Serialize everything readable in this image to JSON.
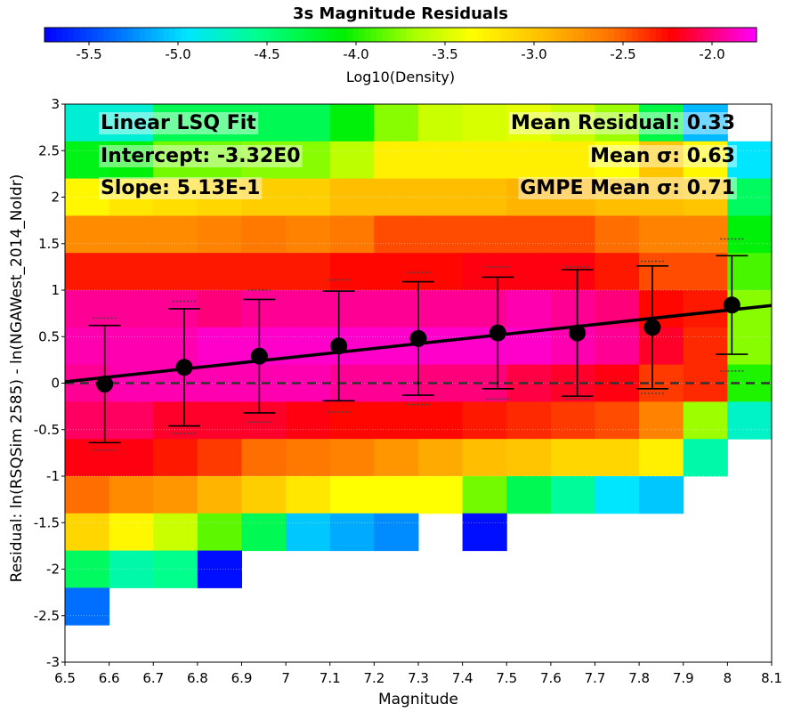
{
  "chart_data": {
    "type": "heatmap",
    "title": "3s Magnitude Residuals",
    "xlabel": "Magnitude",
    "ylabel": "Residual: ln(RSQSim 2585) - ln(NGAWest_2014_NoIdr)",
    "xlim": [
      6.5,
      8.1
    ],
    "ylim": [
      -3,
      3
    ],
    "x_ticks": [
      "6.5",
      "6.6",
      "6.7",
      "6.8",
      "6.9",
      "7",
      "7.1",
      "7.2",
      "7.3",
      "7.4",
      "7.5",
      "7.6",
      "7.7",
      "7.8",
      "7.9",
      "8",
      "8.1"
    ],
    "y_ticks": [
      "-3",
      "-2.5",
      "-2",
      "-1.5",
      "-1",
      "-0.5",
      "0",
      "0.5",
      "1",
      "1.5",
      "2",
      "2.5",
      "3"
    ],
    "colorbar": {
      "label": "Log10(Density)",
      "range": [
        -5.75,
        -1.75
      ],
      "tick_labels": [
        "-5.5",
        "-5.0",
        "-4.5",
        "-4.0",
        "-3.5",
        "-3.0",
        "-2.5",
        "-2.0"
      ],
      "tick_values": [
        -5.5,
        -5.0,
        -4.5,
        -4.0,
        -3.5,
        -3.0,
        -2.5,
        -2.0
      ]
    },
    "grid": {
      "x_step": 0.1,
      "y_step": 0.4,
      "x_start": 6.5,
      "y_start": 3.0,
      "cols": 16,
      "rows": 15
    },
    "heatmap_rows_top_to_bottom": [
      [
        -4.8,
        -4.8,
        -4.35,
        -4.35,
        -4.35,
        -4.35,
        -4.1,
        -3.75,
        -3.55,
        -3.5,
        -3.45,
        -3.55,
        -3.7,
        -4.3,
        -5.1,
        null
      ],
      [
        -4.15,
        -4.1,
        -3.8,
        -3.8,
        -3.75,
        -3.75,
        -3.6,
        -3.25,
        -3.25,
        -3.25,
        -3.25,
        -3.25,
        -3.35,
        -3.0,
        -3.3,
        -4.95
      ],
      [
        -3.3,
        -3.2,
        -3.15,
        -3.1,
        -3.05,
        -3.05,
        -2.95,
        -2.95,
        -2.95,
        -2.95,
        -2.9,
        -2.9,
        -2.95,
        -2.95,
        -3.0,
        -4.4
      ],
      [
        -2.7,
        -2.7,
        -2.7,
        -2.65,
        -2.6,
        -2.65,
        -2.6,
        -2.45,
        -2.45,
        -2.45,
        -2.45,
        -2.45,
        -2.55,
        -2.65,
        -2.65,
        -4.1
      ],
      [
        -2.3,
        -2.3,
        -2.3,
        -2.3,
        -2.3,
        -2.3,
        -2.25,
        -2.25,
        -2.25,
        -2.2,
        -2.2,
        -2.2,
        -2.3,
        -2.45,
        -2.45,
        -3.9
      ],
      [
        -1.95,
        -1.95,
        -1.95,
        -2.0,
        -1.95,
        -1.95,
        -1.95,
        -1.95,
        -1.95,
        -1.95,
        -1.9,
        -1.95,
        -2.0,
        -2.25,
        -2.3,
        -3.75
      ],
      [
        -1.9,
        -1.9,
        -1.9,
        -1.85,
        -1.85,
        -1.85,
        -1.85,
        -1.85,
        -1.85,
        -1.85,
        -1.85,
        -1.9,
        -1.95,
        -2.15,
        -2.35,
        -3.75
      ],
      [
        -1.95,
        -1.9,
        -1.9,
        -1.9,
        -1.9,
        -1.9,
        -1.95,
        -1.95,
        -2.0,
        -2.0,
        -2.1,
        -2.15,
        -2.2,
        -2.4,
        -2.35,
        -4.0
      ],
      [
        -2.05,
        -2.05,
        -2.15,
        -2.15,
        -2.15,
        -2.2,
        -2.25,
        -2.25,
        -2.25,
        -2.3,
        -2.35,
        -2.4,
        -2.45,
        -2.65,
        -3.7,
        -4.75
      ],
      [
        -2.2,
        -2.2,
        -2.3,
        -2.4,
        -2.55,
        -2.6,
        -2.65,
        -2.75,
        -2.85,
        -2.95,
        -3.0,
        -3.1,
        -3.1,
        -3.25,
        -4.65,
        null
      ],
      [
        -2.55,
        -2.7,
        -2.75,
        -2.9,
        -3.05,
        -3.2,
        -3.35,
        -3.35,
        -3.35,
        -3.8,
        -4.35,
        -4.6,
        -4.95,
        -5.05,
        null,
        null
      ],
      [
        -3.1,
        -3.3,
        -3.55,
        -3.85,
        -4.35,
        -5.05,
        -5.15,
        -5.25,
        null,
        -5.7,
        null,
        null,
        null,
        null,
        null,
        null
      ],
      [
        -4.4,
        -4.65,
        -4.55,
        -5.7,
        null,
        null,
        null,
        null,
        null,
        null,
        null,
        null,
        null,
        null,
        null,
        null
      ],
      [
        -5.35,
        null,
        null,
        null,
        null,
        null,
        null,
        null,
        null,
        null,
        null,
        null,
        null,
        null,
        null,
        null
      ],
      [
        null,
        null,
        null,
        null,
        null,
        null,
        null,
        null,
        null,
        null,
        null,
        null,
        null,
        null,
        null,
        null
      ]
    ],
    "binned_points": {
      "magnitude": [
        6.59,
        6.77,
        6.94,
        7.12,
        7.3,
        7.48,
        7.66,
        7.83,
        8.01
      ],
      "mean_residual": [
        -0.01,
        0.17,
        0.29,
        0.4,
        0.48,
        0.54,
        0.54,
        0.6,
        0.84
      ],
      "sigma": [
        0.63,
        0.63,
        0.61,
        0.59,
        0.61,
        0.6,
        0.68,
        0.66,
        0.53
      ],
      "gmpe_sigma_upper": [
        0.71,
        0.71,
        0.71,
        0.71,
        0.71,
        0.71,
        0.71,
        0.71,
        0.71
      ]
    },
    "fit_line": {
      "intercept": -3.32,
      "slope": 0.513
    },
    "zero_line": 0,
    "annotations_left": [
      "Linear LSQ Fit",
      "Intercept: -3.32E0",
      "Slope: 5.13E-1"
    ],
    "annotations_right": [
      "Mean Residual: 0.33",
      "Mean σ: 0.63",
      "GMPE Mean σ: 0.71"
    ]
  }
}
